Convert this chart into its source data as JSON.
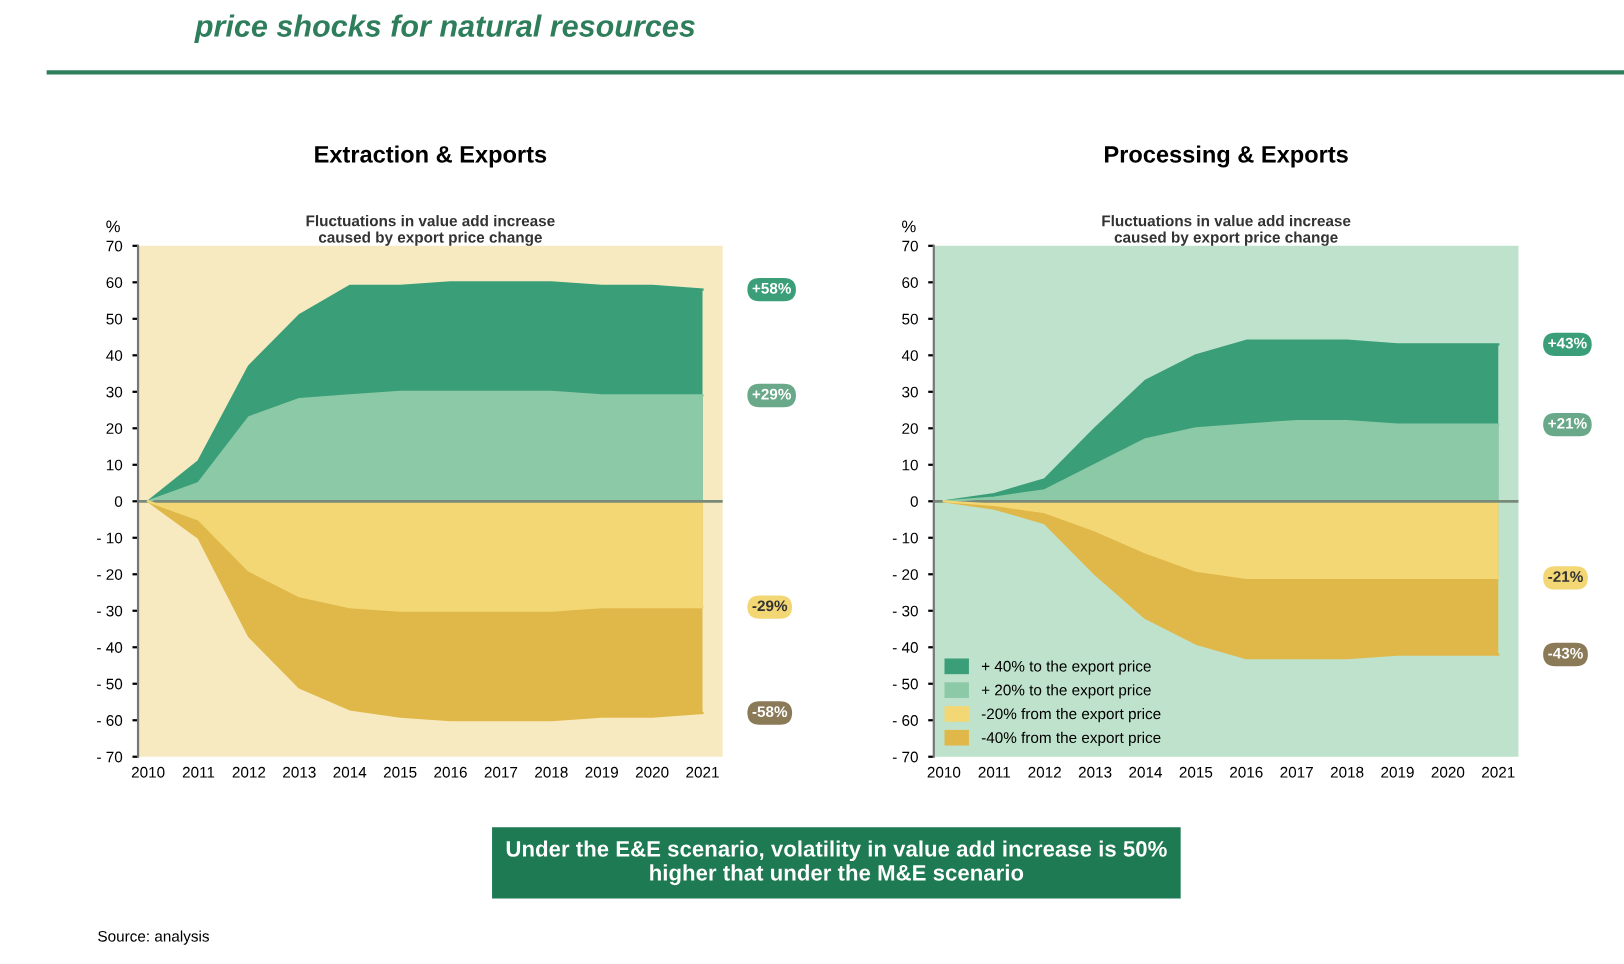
{
  "chart_data": [
    {
      "type": "area",
      "title": "Extraction & Exports",
      "subtitle": "Fluctuations in value add increase\ncaused by export price change",
      "ylabel": "%",
      "categories": [
        "2010",
        "2011",
        "2012",
        "2013",
        "2014",
        "2015",
        "2016",
        "2017",
        "2018",
        "2019",
        "2020",
        "2021"
      ],
      "series": [
        {
          "color": "#3a9e78",
          "values": [
            0,
            11,
            37,
            51,
            59,
            59,
            60,
            60,
            60,
            59,
            59,
            58
          ]
        },
        {
          "color": "#8cc9a6",
          "values": [
            0,
            5,
            23,
            28,
            29,
            30,
            30,
            30,
            30,
            29,
            29,
            29
          ]
        },
        {
          "color": "#f2d774",
          "values": [
            0,
            -5,
            -19,
            -26,
            -29,
            -30,
            -30,
            -30,
            -30,
            -29,
            -29,
            -29
          ]
        },
        {
          "color": "#e0b84a",
          "values": [
            0,
            -10,
            -37,
            -51,
            -57,
            -59,
            -60,
            -60,
            -60,
            -59,
            -59,
            -58
          ]
        }
      ],
      "ylim": [
        -70,
        70
      ],
      "yticks": [
        {
          "value": -70,
          "label": "- 70"
        },
        {
          "value": -60,
          "label": "- 60"
        },
        {
          "value": -50,
          "label": "- 50"
        },
        {
          "value": -40,
          "label": "- 40"
        },
        {
          "value": -30,
          "label": "- 30"
        },
        {
          "value": -20,
          "label": "- 20"
        },
        {
          "value": -10,
          "label": "- 10"
        },
        0,
        10,
        20,
        30,
        40,
        50,
        60,
        70
      ],
      "annotations": [
        "price shocks for natural resources",
        "Under the E&E scenario, volatility in value add increase is 50%\nhigher that under the M&E scenario",
        "Source: analysis",
        "+58%",
        "+29%",
        "-29%",
        "-58%"
      ]
    },
    {
      "type": "area",
      "title": "Processing & Exports",
      "subtitle": "Fluctuations in value add increase\ncaused by export price change",
      "ylabel": "%",
      "categories": [
        "2010",
        "2011",
        "2012",
        "2013",
        "2014",
        "2015",
        "2016",
        "2017",
        "2018",
        "2019",
        "2020",
        "2021"
      ],
      "series": [
        {
          "name": "+ 40% to the export price",
          "color": "#3a9e78",
          "values": [
            0,
            2,
            6,
            20,
            33,
            40,
            44,
            44,
            44,
            43,
            43,
            43
          ]
        },
        {
          "name": "+ 20% to the export price",
          "color": "#8cc9a6",
          "values": [
            0,
            1,
            3,
            10,
            17,
            20,
            21,
            22,
            22,
            21,
            21,
            21
          ]
        },
        {
          "name": "-20% from the export price",
          "color": "#f2d774",
          "values": [
            0,
            -1,
            -3,
            -8,
            -14,
            -19,
            -21,
            -21,
            -21,
            -21,
            -21,
            -21
          ]
        },
        {
          "name": "-40% from the export price",
          "color": "#e0b84a",
          "values": [
            0,
            -2,
            -6,
            -20,
            -32,
            -39,
            -43,
            -43,
            -43,
            -42,
            -42,
            -42
          ]
        }
      ],
      "ylim": [
        -70,
        70
      ],
      "yticks": [
        {
          "value": -70,
          "label": "- 70"
        },
        {
          "value": -60,
          "label": "- 60"
        },
        {
          "value": -50,
          "label": "- 50"
        },
        {
          "value": -40,
          "label": "- 40"
        },
        {
          "value": -30,
          "label": "- 30"
        },
        {
          "value": -20,
          "label": "- 20"
        },
        {
          "value": -10,
          "label": "- 10"
        },
        0,
        10,
        20,
        30,
        40,
        50,
        60,
        70
      ],
      "legend": "bottom left",
      "annotations": [
        "+43%",
        "+21%",
        "-21%",
        "-43%"
      ]
    }
  ]
}
